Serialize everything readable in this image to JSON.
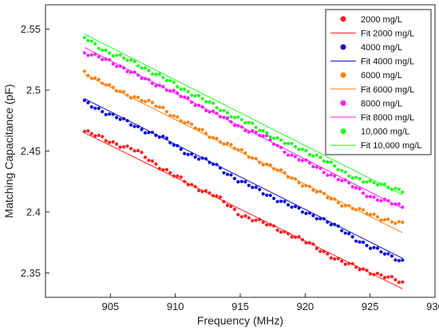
{
  "chart_data": {
    "type": "scatter",
    "title": "",
    "xlabel": "Frequency (MHz)",
    "ylabel": "Matching Capacitance (pF)",
    "xlim": [
      900,
      930
    ],
    "ylim": [
      2.33,
      2.57
    ],
    "xticks": [
      905,
      910,
      915,
      920,
      925,
      930
    ],
    "yticks": [
      2.35,
      2.4,
      2.45,
      2.5,
      2.55
    ],
    "x_start": 903,
    "x_end": 927.5,
    "points_per_series": 90,
    "grid": false,
    "legend_position": "top-right",
    "series": [
      {
        "name": "2000 mg/L",
        "fit_name": "Fit 2000 mg/L",
        "color": "#ff1a1a",
        "data_x": [
          903,
          905,
          907,
          909,
          911,
          913,
          915,
          917,
          919,
          921,
          923,
          925,
          927.5
        ],
        "data_y": [
          2.466,
          2.458,
          2.45,
          2.436,
          2.423,
          2.414,
          2.398,
          2.39,
          2.381,
          2.37,
          2.358,
          2.351,
          2.342
        ],
        "fit_y": [
          2.465,
          2.337
        ]
      },
      {
        "name": "4000 mg/L",
        "fit_name": "Fit 4000 mg/L",
        "color": "#0a0adc",
        "data_x": [
          903,
          905,
          907,
          909,
          911,
          913,
          915,
          917,
          919,
          921,
          923,
          925,
          927.5
        ],
        "data_y": [
          2.49,
          2.48,
          2.47,
          2.461,
          2.448,
          2.439,
          2.425,
          2.415,
          2.404,
          2.396,
          2.384,
          2.371,
          2.36
        ],
        "fit_y": [
          2.493,
          2.362
        ]
      },
      {
        "name": "6000 mg/L",
        "fit_name": "Fit 6000 mg/L",
        "color": "#ff7f0e",
        "data_x": [
          903,
          905,
          907,
          909,
          911,
          913,
          915,
          917,
          919,
          921,
          923,
          925,
          927.5
        ],
        "data_y": [
          2.515,
          2.502,
          2.494,
          2.485,
          2.472,
          2.461,
          2.45,
          2.439,
          2.428,
          2.416,
          2.406,
          2.398,
          2.39
        ],
        "fit_y": [
          2.513,
          2.383
        ]
      },
      {
        "name": "8000 mg/L",
        "fit_name": "Fit 8000 mg/L",
        "color": "#ff1aff",
        "data_x": [
          903,
          905,
          907,
          909,
          911,
          913,
          915,
          917,
          919,
          921,
          923,
          925,
          927.5
        ],
        "data_y": [
          2.53,
          2.524,
          2.512,
          2.503,
          2.492,
          2.481,
          2.47,
          2.461,
          2.446,
          2.436,
          2.425,
          2.413,
          2.404
        ],
        "fit_y": [
          2.535,
          2.403
        ]
      },
      {
        "name": "10,000 mg/L",
        "fit_name": "Fit 10,000 mg/L",
        "color": "#1aff1a",
        "data_x": [
          903,
          905,
          907,
          909,
          911,
          913,
          915,
          917,
          919,
          921,
          923,
          925,
          927.5
        ],
        "data_y": [
          2.543,
          2.53,
          2.522,
          2.51,
          2.499,
          2.487,
          2.476,
          2.465,
          2.454,
          2.446,
          2.432,
          2.424,
          2.418
        ],
        "fit_y": [
          2.546,
          2.414
        ]
      }
    ]
  }
}
